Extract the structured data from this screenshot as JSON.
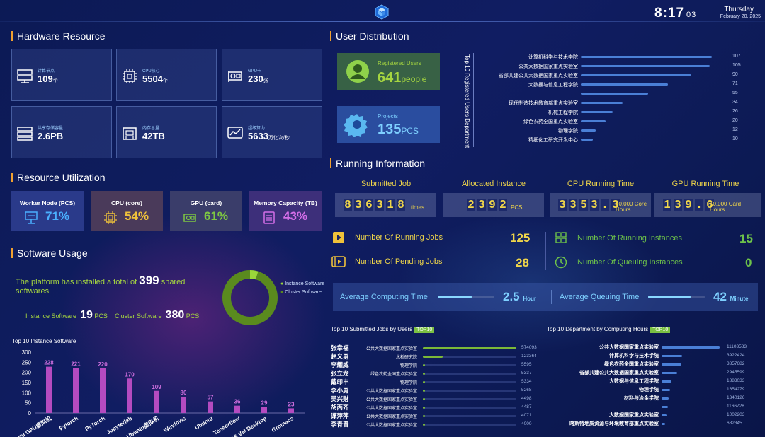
{
  "header": {
    "time": "8:17",
    "seconds": "03",
    "day": "Thursday",
    "date": "February 20, 2025"
  },
  "hardware": {
    "title": "Hardware Resource",
    "cards": [
      {
        "icon": "server-icon",
        "label": "计算节点",
        "value": "109",
        "unit": "个"
      },
      {
        "icon": "cpu-icon",
        "label": "CPU核心",
        "value": "5504",
        "unit": "个"
      },
      {
        "icon": "gpu-card-icon",
        "label": "GPU卡",
        "value": "230",
        "unit": "张"
      },
      {
        "icon": "storage-icon",
        "label": "共享存储容量",
        "value": "2.6PB",
        "unit": ""
      },
      {
        "icon": "memory-icon",
        "label": "内存总量",
        "value": "42TB",
        "unit": ""
      },
      {
        "icon": "chart-line-icon",
        "label": "超级算力",
        "value": "5633",
        "unit": "万亿次/秒"
      }
    ]
  },
  "utilization": {
    "title": "Resource Utilization",
    "items": [
      {
        "label": "Worker Node (PCS)",
        "value": "71%",
        "color": "#4ab0ff",
        "bg": "#2a3a8a"
      },
      {
        "label": "CPU (core)",
        "value": "54%",
        "color": "#f0c23a",
        "bg": "#4a3a5a"
      },
      {
        "label": "GPU (card)",
        "value": "61%",
        "color": "#7ec842",
        "bg": "#3a3d6a"
      },
      {
        "label": "Memory Capacity (TB)",
        "value": "43%",
        "color": "#d46ee8",
        "bg": "#3d2f7a"
      }
    ]
  },
  "software": {
    "title": "Software Usage",
    "intro_pre": "The platform has installed a total of ",
    "total": "399",
    "intro_post": " shared softwares",
    "instance_label": "Instance Software",
    "instance_count": "19",
    "instance_unit": "PCS",
    "cluster_label": "Cluster Software",
    "cluster_count": "380",
    "cluster_unit": "PCS",
    "legend": [
      "Instance Software",
      "Cluster Software"
    ]
  },
  "chart_data": {
    "type": "bar",
    "title": "Top 10 Instance Software",
    "categories": [
      "Ubuntu GPU虚拟机",
      "Pytorch",
      "PyTorch",
      "Jupyterlab",
      "Ubuntu虚拟机",
      "Windows",
      "Ubuntu",
      "Tensorflow",
      "CentOS VM Desktop",
      "Gromacs"
    ],
    "values": [
      228,
      221,
      220,
      170,
      109,
      80,
      57,
      36,
      29,
      23
    ],
    "ylim": [
      0,
      300
    ],
    "yticks": [
      0,
      50,
      100,
      150,
      200,
      250,
      300
    ],
    "donut": {
      "instance": 19,
      "cluster": 380
    }
  },
  "users": {
    "title": "User Distribution",
    "registered_label": "Registered Users",
    "registered_value": "641",
    "registered_unit": "people",
    "projects_label": "Projects",
    "projects_value": "135",
    "projects_unit": "PCS",
    "side_label": "Top 10 Registered Users Department",
    "departments": [
      {
        "name": "计算机科学与技术学院",
        "value": 107
      },
      {
        "name": "公共大数据国家重点实验室",
        "value": 105
      },
      {
        "name": "省部共建公共大数据国家重点实验室",
        "value": 90
      },
      {
        "name": "大数据与信息工程学院",
        "value": 71
      },
      {
        "name": "",
        "value": 55
      },
      {
        "name": "现代制造技术教育部重点实验室",
        "value": 34
      },
      {
        "name": "机械工程学院",
        "value": 26
      },
      {
        "name": "绿色农药全国重点实验室",
        "value": 20
      },
      {
        "name": "物理学院",
        "value": 12
      },
      {
        "name": "精细化工研究开发中心",
        "value": 10
      }
    ]
  },
  "running": {
    "title": "Running Information",
    "counters": [
      {
        "label": "Submitted Job",
        "digits": "836318",
        "unit": "times"
      },
      {
        "label": "Allocated Instance",
        "digits": "2392",
        "unit": "PCS"
      },
      {
        "label": "CPU Running Time",
        "digits": "3353.3",
        "unit": "10,000 Core Hours"
      },
      {
        "label": "GPU Running Time",
        "digits": "139.6",
        "unit": "10,000 Card Hours"
      }
    ],
    "running_jobs_label": "Number Of Running Jobs",
    "running_jobs": "125",
    "pending_jobs_label": "Number Of Pending Jobs",
    "pending_jobs": "28",
    "running_inst_label": "Number Of Running Instances",
    "running_inst": "15",
    "queuing_inst_label": "Number Of Queuing Instances",
    "queuing_inst": "0",
    "avg_compute_label": "Average Computing Time",
    "avg_compute": "2.5",
    "avg_compute_unit": "Hour",
    "avg_queue_label": "Average Queuing Time",
    "avg_queue": "42",
    "avg_queue_unit": "Minute",
    "avg_compute_fill": 0.6,
    "avg_queue_fill": 0.75
  },
  "top_jobs": {
    "title": "Top 10 Submitted Jobs by Users",
    "tag": "TOP10",
    "rows": [
      {
        "name": "张幸福",
        "dept": "公共大数据国家重点实验室",
        "value": 574093
      },
      {
        "name": "赵义勇",
        "dept": "水稻研究院",
        "value": 123364
      },
      {
        "name": "李耀威",
        "dept": "物理学院",
        "value": 5595
      },
      {
        "name": "张立龙",
        "dept": "绿色农药全国重点实验室",
        "value": 5337
      },
      {
        "name": "戴印丰",
        "dept": "物理学院",
        "value": 5334
      },
      {
        "name": "李小勇",
        "dept": "公共大数据国家重点实验室",
        "value": 5268
      },
      {
        "name": "吴兴财",
        "dept": "公共大数据国家重点实验室",
        "value": 4498
      },
      {
        "name": "胡丙齐",
        "dept": "公共大数据国家重点实验室",
        "value": 4487
      },
      {
        "name": "谭萍萍",
        "dept": "公共大数据国家重点实验室",
        "value": 4071
      },
      {
        "name": "李青晋",
        "dept": "公共大数据国家重点实验室",
        "value": 4000
      }
    ]
  },
  "top_depts": {
    "title": "Top 10 Department by Computing Hours",
    "tag": "TOP10",
    "rows": [
      {
        "name": "公共大数据国家重点实验室",
        "value": 11103583
      },
      {
        "name": "计算机科学与技术学院",
        "value": 3922424
      },
      {
        "name": "绿色农药全国重点实验室",
        "value": 3857682
      },
      {
        "name": "省部共建公共大数据国家重点实验室",
        "value": 2945599
      },
      {
        "name": "大数据与信息工程学院",
        "value": 1883033
      },
      {
        "name": "物理学院",
        "value": 1654279
      },
      {
        "name": "材料与冶金学院",
        "value": 1340126
      },
      {
        "name": "",
        "value": 1166728
      },
      {
        "name": "大数据国家重点实验室",
        "value": 1002203
      },
      {
        "name": "喀斯特地质资源与环境教育部重点实验室",
        "value": 682345
      }
    ]
  }
}
